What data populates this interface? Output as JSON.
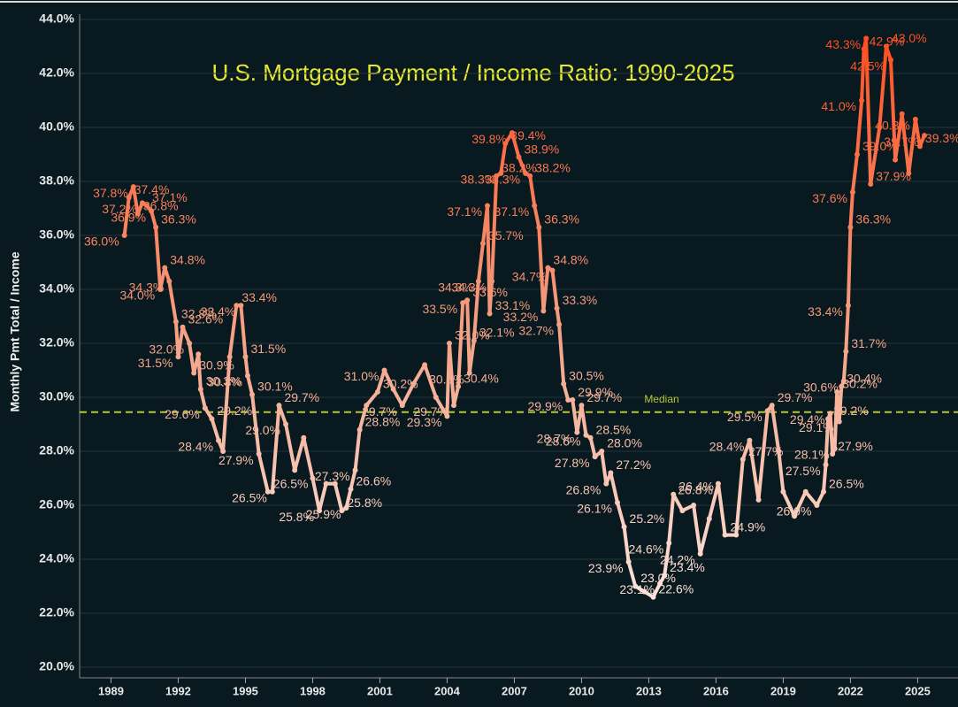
{
  "chart_data": {
    "type": "line",
    "title": "U.S. Mortgage Payment / Income Ratio: 1990-2025",
    "y_label": "Monthly Pmt Total / Income",
    "x": [
      1989.6,
      1989.8,
      1990.0,
      1990.2,
      1990.4,
      1990.6,
      1990.8,
      1991.0,
      1991.2,
      1991.4,
      1991.6,
      1991.9,
      1992.0,
      1992.2,
      1992.5,
      1992.7,
      1992.9,
      1993.0,
      1993.2,
      1993.5,
      1993.8,
      1994.0,
      1994.3,
      1994.6,
      1994.8,
      1995.0,
      1995.1,
      1995.3,
      1995.6,
      1996.0,
      1996.2,
      1996.5,
      1996.8,
      1997.2,
      1997.6,
      1998.0,
      1998.3,
      1998.6,
      1999.0,
      1999.3,
      1999.5,
      1999.7,
      1999.9,
      2000.1,
      2000.4,
      2000.9,
      2001.2,
      2001.6,
      2002.0,
      2002.5,
      2003.0,
      2003.5,
      2004.0,
      2004.1,
      2004.3,
      2004.5,
      2004.7,
      2004.9,
      2005.0,
      2005.2,
      2005.4,
      2005.6,
      2005.8,
      2005.9,
      2006.0,
      2006.2,
      2006.4,
      2006.6,
      2006.9,
      2007.2,
      2007.5,
      2007.7,
      2007.9,
      2008.1,
      2008.3,
      2008.5,
      2008.7,
      2008.9,
      2009.0,
      2009.2,
      2009.4,
      2009.6,
      2009.8,
      2010.0,
      2010.2,
      2010.4,
      2010.6,
      2010.9,
      2011.1,
      2011.3,
      2011.6,
      2011.9,
      2012.1,
      2012.4,
      2012.8,
      2013.2,
      2013.5,
      2013.7,
      2013.9,
      2014.1,
      2014.5,
      2015.0,
      2015.3,
      2015.7,
      2016.1,
      2016.4,
      2016.9,
      2017.2,
      2017.5,
      2017.9,
      2018.3,
      2018.5,
      2018.8,
      2019.0,
      2019.5,
      2020.0,
      2020.5,
      2020.8,
      2020.9,
      2021.0,
      2021.1,
      2021.2,
      2021.3,
      2021.4,
      2021.5,
      2021.6,
      2021.7,
      2021.8,
      2021.9,
      2022.0,
      2022.1,
      2022.3,
      2022.5,
      2022.6,
      2022.7,
      2022.9,
      2023.3,
      2023.6,
      2023.8,
      2024.0,
      2024.3,
      2024.6,
      2024.9,
      2025.1,
      2025.3
    ],
    "values": [
      36.0,
      37.4,
      37.8,
      36.8,
      37.2,
      37.1,
      36.9,
      36.3,
      34.0,
      34.8,
      34.3,
      32.8,
      31.5,
      32.6,
      32.0,
      30.9,
      31.6,
      30.3,
      29.6,
      29.2,
      28.4,
      28.0,
      31.5,
      33.4,
      33.4,
      31.5,
      30.8,
      30.1,
      27.9,
      26.5,
      26.5,
      29.7,
      29.0,
      27.3,
      28.5,
      27.0,
      25.8,
      26.8,
      26.8,
      25.8,
      25.9,
      26.6,
      27.3,
      28.8,
      29.7,
      30.2,
      31.0,
      30.3,
      29.7,
      30.5,
      31.2,
      30.0,
      29.3,
      32.0,
      29.7,
      30.4,
      33.5,
      33.6,
      30.9,
      32.1,
      34.3,
      35.7,
      37.1,
      33.1,
      34.3,
      38.2,
      38.3,
      39.4,
      39.8,
      38.9,
      38.3,
      38.2,
      37.1,
      36.3,
      33.2,
      34.8,
      34.7,
      33.3,
      32.7,
      30.5,
      29.9,
      29.9,
      28.7,
      29.7,
      28.6,
      28.5,
      27.8,
      28.0,
      26.8,
      27.2,
      26.1,
      25.2,
      23.9,
      23.0,
      22.8,
      22.6,
      23.1,
      23.4,
      24.6,
      26.4,
      25.8,
      26.0,
      24.2,
      25.5,
      26.8,
      24.9,
      24.9,
      27.7,
      28.4,
      26.2,
      29.5,
      29.7,
      28.0,
      26.5,
      25.6,
      26.5,
      26.0,
      26.5,
      27.5,
      29.2,
      29.4,
      27.9,
      28.1,
      30.2,
      29.1,
      30.4,
      30.6,
      31.7,
      33.4,
      36.3,
      37.6,
      39.0,
      41.0,
      42.9,
      43.3,
      37.9,
      40.0,
      43.0,
      42.5,
      38.8,
      40.5,
      38.3,
      40.3,
      39.3,
      39.7
    ],
    "value_labels": [
      "36.0%",
      "37.4%",
      "37.8%",
      "36.8%",
      "37.2%",
      "37.1%",
      "36.9%",
      "36.3%",
      "34.0%",
      "34.8%",
      "34.3%",
      "32.8%",
      "31.5%",
      "32.6%",
      "32.0%",
      "30.9%",
      null,
      "30.3%",
      "29.6%",
      "29.2%",
      "28.4%",
      null,
      null,
      "33.4%",
      "33.4%",
      "31.5%",
      "30.8%",
      "30.1%",
      "27.9%",
      "26.5%",
      "26.5%",
      "29.7%",
      "29.0%",
      null,
      null,
      null,
      "25.8%",
      null,
      null,
      "25.8%",
      "25.9%",
      "26.6%",
      "27.3%",
      "28.8%",
      null,
      "30.2%",
      "31.0%",
      null,
      "29.7%",
      null,
      null,
      null,
      "29.3%",
      "32.0%",
      "29.7%",
      "30.4%",
      "33.5%",
      "33.6%",
      "30.9%",
      "32.1%",
      "34.3%",
      "35.7%",
      "37.1%",
      "33.1%",
      "34.3%",
      "38.2%",
      "38.3%",
      "39.4%",
      "39.8%",
      "38.9%",
      "38.3%",
      "38.2%",
      "37.1%",
      "36.3%",
      "33.2%",
      "34.8%",
      "34.7%",
      "33.3%",
      "32.7%",
      "30.5%",
      "29.9%",
      "29.9%",
      "28.7%",
      "29.7%",
      "28.6%",
      "28.5%",
      "27.8%",
      "28.0%",
      "26.8%",
      "27.2%",
      "26.1%",
      "25.2%",
      "23.9%",
      "23.0%",
      null,
      "22.6%",
      "23.1%",
      "23.4%",
      "24.6%",
      "26.4%",
      null,
      null,
      "24.2%",
      null,
      "26.8%",
      "24.9%",
      null,
      "27.7%",
      "28.4%",
      null,
      "29.5%",
      "29.7%",
      null,
      null,
      null,
      null,
      "26.0%",
      "26.5%",
      "27.5%",
      "29.2%",
      "29.4%",
      "27.9%",
      "28.1%",
      "30.2%",
      "29.1%",
      "30.4%",
      "30.6%",
      "31.7%",
      "33.4%",
      "36.3%",
      "37.6%",
      "39.0%",
      "41.0%",
      "42.9%",
      "43.3%",
      "37.9%",
      null,
      "43.0%",
      "42.5%",
      null,
      null,
      null,
      "40.3%",
      "39.3%",
      "39.7%"
    ],
    "line_colors": [
      "#fdf3f0",
      "#f4a488",
      "#ff4a1a"
    ],
    "xlim": [
      1987.6,
      2026.8
    ],
    "ylim": [
      20,
      44
    ],
    "xticks": [
      1989,
      1992,
      1995,
      1998,
      2001,
      2004,
      2007,
      2010,
      2013,
      2016,
      2019,
      2022,
      2025
    ],
    "yticks": [
      {
        "value": 20,
        "label": "20.0%"
      },
      {
        "value": 22,
        "label": "22.0%"
      },
      {
        "value": 24,
        "label": "24.0%"
      },
      {
        "value": 26,
        "label": "26.0%"
      },
      {
        "value": 28,
        "label": "28.0%"
      },
      {
        "value": 30,
        "label": "30.0%"
      },
      {
        "value": 32,
        "label": "32.0%"
      },
      {
        "value": 34,
        "label": "34.0%"
      },
      {
        "value": 36,
        "label": "36.0%"
      },
      {
        "value": 38,
        "label": "38.0%"
      },
      {
        "value": 40,
        "label": "40.0%"
      },
      {
        "value": 42,
        "label": "42.0%"
      },
      {
        "value": 44,
        "label": "44.0%"
      }
    ],
    "reference_line": {
      "label": "Median",
      "value": 29.45,
      "color": "#b5c832"
    },
    "grid": true
  }
}
